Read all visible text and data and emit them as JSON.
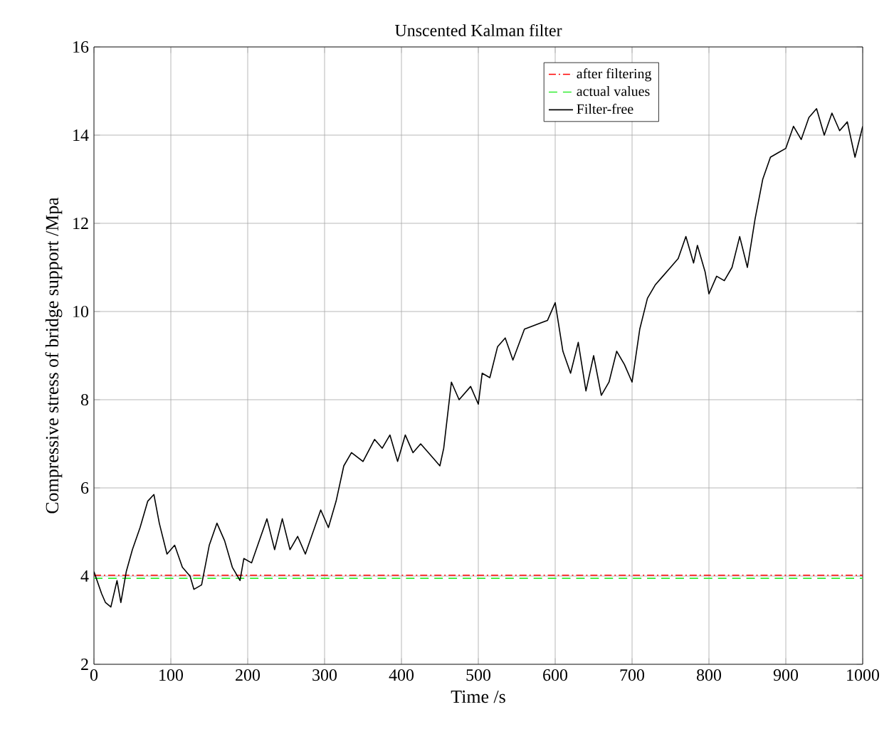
{
  "chart_data": {
    "type": "line",
    "title": "Unscented Kalman filter",
    "xlabel": "Time /s",
    "ylabel": "Compressive stress of bridge support /Mpa",
    "xlim": [
      0,
      1000
    ],
    "ylim": [
      2,
      16
    ],
    "xticks": [
      0,
      100,
      200,
      300,
      400,
      500,
      600,
      700,
      800,
      900,
      1000
    ],
    "yticks": [
      2,
      4,
      6,
      8,
      10,
      12,
      14,
      16
    ],
    "grid": true,
    "legend": "top right",
    "marker": "none",
    "series": [
      {
        "name": "after filtering",
        "color": "#ff0000",
        "line_style": "dashdot",
        "x": [
          0,
          1000
        ],
        "values": [
          4.02,
          4.02
        ]
      },
      {
        "name": "actual values",
        "color": "#33ee33",
        "line_style": "dashed",
        "x": [
          0,
          1000
        ],
        "values": [
          3.95,
          3.95
        ]
      },
      {
        "name": "Filter-free",
        "color": "#000000",
        "line_style": "solid",
        "x": [
          0,
          10,
          15,
          22,
          30,
          35,
          42,
          50,
          60,
          70,
          78,
          85,
          95,
          105,
          115,
          125,
          130,
          140,
          150,
          160,
          170,
          180,
          190,
          195,
          205,
          215,
          225,
          235,
          245,
          255,
          265,
          275,
          285,
          295,
          305,
          315,
          325,
          335,
          350,
          365,
          375,
          385,
          395,
          405,
          415,
          425,
          440,
          450,
          455,
          465,
          475,
          490,
          500,
          505,
          515,
          525,
          535,
          545,
          560,
          575,
          590,
          600,
          610,
          620,
          630,
          640,
          650,
          660,
          670,
          680,
          690,
          700,
          710,
          720,
          730,
          740,
          750,
          760,
          770,
          780,
          785,
          795,
          800,
          810,
          820,
          830,
          840,
          850,
          860,
          870,
          880,
          890,
          900,
          910,
          920,
          930,
          940,
          950,
          960,
          970,
          980,
          990,
          1000
        ],
        "values": [
          4.1,
          3.6,
          3.4,
          3.3,
          3.9,
          3.4,
          4.1,
          4.6,
          5.1,
          5.7,
          5.85,
          5.2,
          4.5,
          4.7,
          4.2,
          4.0,
          3.7,
          3.8,
          4.7,
          5.2,
          4.8,
          4.2,
          3.9,
          4.4,
          4.3,
          4.8,
          5.3,
          4.6,
          5.3,
          4.6,
          4.9,
          4.5,
          5.0,
          5.5,
          5.1,
          5.7,
          6.5,
          6.8,
          6.6,
          7.1,
          6.9,
          7.2,
          6.6,
          7.2,
          6.8,
          7.0,
          6.7,
          6.5,
          6.9,
          8.4,
          8.0,
          8.3,
          7.9,
          8.6,
          8.5,
          9.2,
          9.4,
          8.9,
          9.6,
          9.7,
          9.8,
          10.2,
          9.1,
          8.6,
          9.3,
          8.2,
          9.0,
          8.1,
          8.4,
          9.1,
          8.8,
          8.4,
          9.6,
          10.3,
          10.6,
          10.8,
          11.0,
          11.2,
          11.7,
          11.1,
          11.5,
          10.9,
          10.4,
          10.8,
          10.7,
          11.0,
          11.7,
          11.0,
          12.1,
          13.0,
          13.5,
          13.6,
          13.7,
          14.2,
          13.9,
          14.4,
          14.6,
          14.0,
          14.5,
          14.1,
          14.3,
          13.5,
          14.2
        ]
      }
    ]
  }
}
